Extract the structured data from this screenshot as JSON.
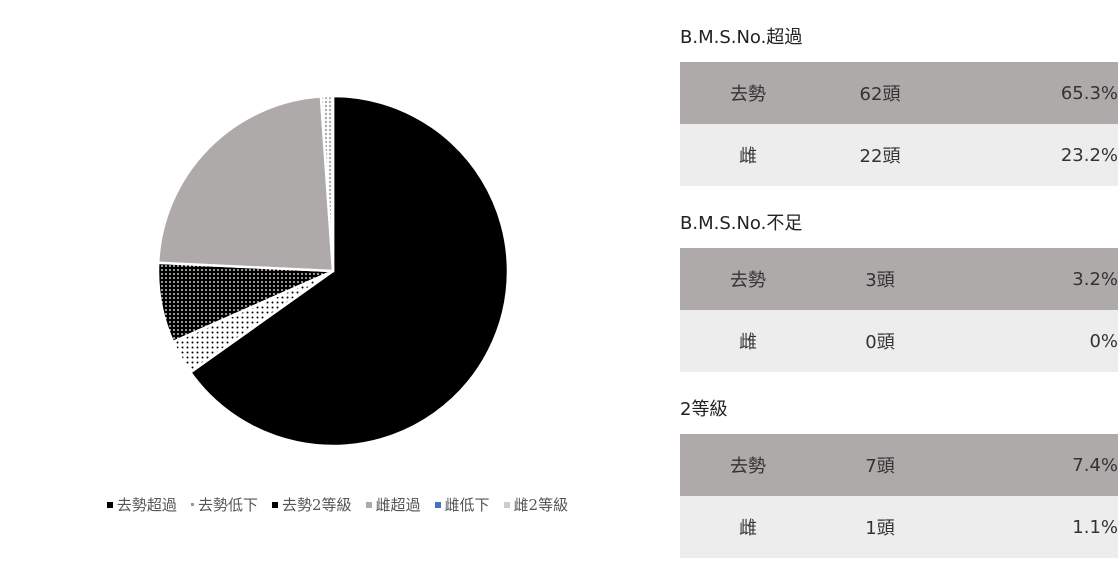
{
  "chart_data": {
    "type": "pie",
    "categories": [
      "去勢超過",
      "去勢低下",
      "去勢2等級",
      "雌超過",
      "雌低下",
      "雌2等級"
    ],
    "values": [
      65.3,
      3.2,
      7.4,
      23.2,
      0,
      1.1
    ],
    "colors": [
      "#000000",
      "#ffffff",
      "#000000",
      "#aeaaaa",
      "#4472c4",
      "#d9d9d9"
    ],
    "patterns": [
      "none",
      "dots-dark",
      "dots-light",
      "none",
      "none",
      "dots-gray"
    ],
    "legend": "bottom"
  },
  "tables": [
    {
      "title": "B.M.S.No.超過",
      "rows": [
        [
          "去勢",
          "62頭",
          "65.3%"
        ],
        [
          "雌",
          "22頭",
          "23.2%"
        ]
      ]
    },
    {
      "title": "B.M.S.No.不足",
      "rows": [
        [
          "去勢",
          "3頭",
          "3.2%"
        ],
        [
          "雌",
          "0頭",
          "0%"
        ]
      ]
    },
    {
      "title": "2等級",
      "rows": [
        [
          "去勢",
          "7頭",
          "7.4%"
        ],
        [
          "雌",
          "1頭",
          "1.1%"
        ]
      ]
    }
  ]
}
